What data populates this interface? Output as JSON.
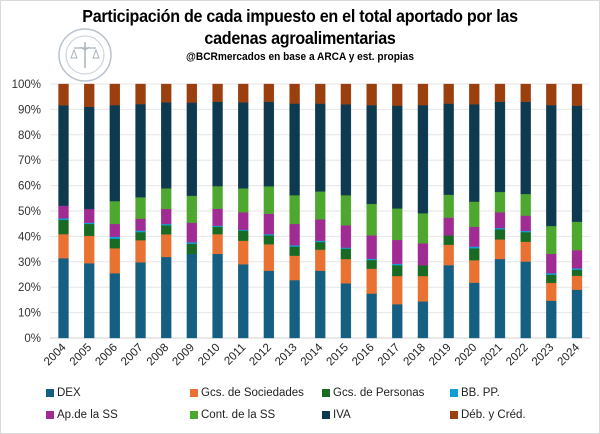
{
  "header": {
    "title_line1": "Participación de cada impuesto en el total aportado por las",
    "title_line2": "cadenas agroalimentarias",
    "subtitle": "@BCRmercados  en base a ARCA y est. propias",
    "logo": "bolsa-de-comercio-de-rosario-seal-icon"
  },
  "chart_data": {
    "type": "bar",
    "stacked": true,
    "percent_stacked": true,
    "title": "Participación de cada impuesto en el total aportado por las cadenas agroalimentarias",
    "subtitle": "@BCRmercados  en base a ARCA y est. propias",
    "xlabel": "",
    "ylabel": "",
    "ylim": [
      0,
      100
    ],
    "yticks": [
      "0%",
      "10%",
      "20%",
      "30%",
      "40%",
      "50%",
      "60%",
      "70%",
      "80%",
      "90%",
      "100%"
    ],
    "grid": true,
    "legend_position": "bottom",
    "categories": [
      "2004",
      "2005",
      "2006",
      "2007",
      "2008",
      "2009",
      "2010",
      "2011",
      "2012",
      "2013",
      "2014",
      "2015",
      "2016",
      "2017",
      "2018",
      "2019",
      "2020",
      "2021",
      "2022",
      "2023",
      "2024"
    ],
    "series": [
      {
        "name": "DEX",
        "color": "#156082",
        "values": [
          31.4,
          29.4,
          25.5,
          29.8,
          31.9,
          33.1,
          33.1,
          29.0,
          26.5,
          22.8,
          26.5,
          21.5,
          17.5,
          13.3,
          14.4,
          28.7,
          21.8,
          31.1,
          30.1,
          14.7,
          19.0
        ]
      },
      {
        "name": "Gcs. de Sociedades",
        "color": "#E97132",
        "values": [
          9.5,
          10.8,
          9.8,
          8.7,
          8.9,
          0.0,
          7.8,
          9.3,
          10.4,
          9.6,
          8.3,
          9.6,
          9.8,
          11.1,
          10.0,
          8.0,
          8.8,
          7.7,
          7.8,
          7.0,
          5.5
        ]
      },
      {
        "name": "Gcs. de Personas",
        "color": "#196B24",
        "values": [
          5.6,
          4.7,
          3.8,
          3.2,
          3.6,
          4.0,
          2.9,
          4.0,
          3.5,
          3.6,
          3.0,
          4.1,
          3.4,
          4.3,
          4.2,
          3.7,
          4.7,
          4.0,
          3.8,
          3.2,
          2.4
        ]
      },
      {
        "name": "BB. PP.",
        "color": "#0F9ED5",
        "values": [
          0.6,
          0.5,
          0.8,
          0.6,
          0.5,
          0.6,
          0.4,
          0.3,
          0.5,
          0.5,
          0.5,
          0.4,
          0.5,
          0.5,
          0.0,
          0.0,
          0.7,
          0.5,
          0.5,
          0.6,
          0.5
        ]
      },
      {
        "name": "Ap.de la SS",
        "color": "#A02B93",
        "values": [
          5.0,
          5.4,
          5.0,
          4.7,
          5.9,
          7.7,
          6.7,
          6.9,
          8.0,
          8.4,
          8.4,
          8.8,
          9.2,
          9.4,
          8.7,
          7.0,
          7.8,
          6.2,
          6.0,
          7.6,
          7.2
        ]
      },
      {
        "name": "Cont. de la SS",
        "color": "#4EA72E",
        "values": [
          0.0,
          0.0,
          9.0,
          8.4,
          8.1,
          10.6,
          8.9,
          9.4,
          10.8,
          11.3,
          11.0,
          11.8,
          12.4,
          12.4,
          11.8,
          9.0,
          9.9,
          8.0,
          8.5,
          11.0,
          11.2
        ]
      },
      {
        "name": "IVA",
        "color": "#0E3A50",
        "values": [
          39.5,
          40.2,
          37.8,
          36.7,
          33.9,
          36.7,
          33.2,
          33.9,
          33.3,
          36.1,
          34.6,
          35.8,
          38.9,
          40.5,
          42.6,
          35.9,
          38.3,
          35.5,
          36.3,
          47.6,
          45.7
        ]
      },
      {
        "name": "Déb. y Créd.",
        "color": "#9C3F0E",
        "values": [
          8.4,
          9.0,
          8.3,
          7.9,
          7.2,
          7.3,
          7.0,
          7.2,
          7.0,
          7.7,
          7.7,
          8.0,
          8.3,
          8.5,
          8.3,
          7.7,
          8.0,
          7.0,
          7.0,
          8.3,
          8.5
        ]
      }
    ],
    "legend_order": [
      "DEX",
      "Gcs. de Sociedades",
      "Gcs. de Personas",
      "BB. PP.",
      "Ap.de la SS",
      "Cont. de la SS",
      "IVA",
      "Déb. y Créd."
    ]
  }
}
